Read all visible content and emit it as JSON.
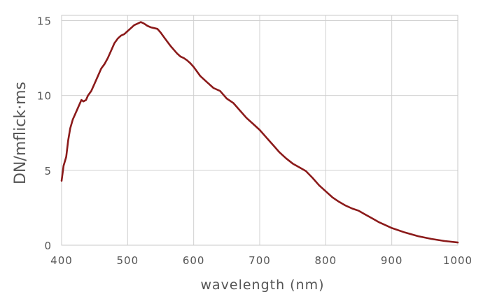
{
  "chart_data": {
    "type": "line",
    "title": "",
    "xlabel": "wavelength (nm)",
    "ylabel": "DN/mflick·ms",
    "xlim": [
      400,
      1000
    ],
    "ylim": [
      0,
      16
    ],
    "x_ticks": [
      400,
      500,
      600,
      700,
      800,
      900,
      1000
    ],
    "y_ticks": [
      0,
      5,
      10,
      15
    ],
    "grid": true,
    "legend": "none",
    "line_color": "#8b1a1a",
    "grid_color": "#d0d0d0",
    "series": [
      {
        "x": [
          400,
          403,
          407,
          410,
          413,
          417,
          420,
          425,
          430,
          433,
          437,
          440,
          445,
          450,
          455,
          460,
          465,
          470,
          475,
          480,
          485,
          490,
          495,
          500,
          505,
          510,
          515,
          520,
          525,
          530,
          535,
          540,
          545,
          550,
          555,
          560,
          565,
          570,
          575,
          580,
          585,
          590,
          595,
          600,
          610,
          620,
          630,
          640,
          650,
          660,
          670,
          680,
          690,
          700,
          710,
          720,
          730,
          740,
          750,
          760,
          770,
          780,
          790,
          800,
          810,
          820,
          830,
          840,
          850,
          860,
          870,
          880,
          890,
          900,
          920,
          940,
          960,
          980,
          1000
        ],
        "y": [
          4.3,
          5.3,
          5.9,
          7.0,
          7.8,
          8.4,
          8.7,
          9.2,
          9.7,
          9.6,
          9.7,
          10.0,
          10.3,
          10.8,
          11.3,
          11.8,
          12.1,
          12.5,
          13.0,
          13.5,
          13.8,
          14.0,
          14.1,
          14.3,
          14.5,
          14.7,
          14.8,
          14.9,
          14.8,
          14.65,
          14.55,
          14.5,
          14.45,
          14.2,
          13.9,
          13.6,
          13.3,
          13.05,
          12.8,
          12.6,
          12.5,
          12.35,
          12.15,
          11.9,
          11.3,
          10.9,
          10.5,
          10.3,
          9.8,
          9.5,
          9.0,
          8.5,
          8.1,
          7.7,
          7.2,
          6.7,
          6.2,
          5.8,
          5.45,
          5.2,
          4.95,
          4.5,
          4.0,
          3.6,
          3.2,
          2.9,
          2.65,
          2.45,
          2.3,
          2.05,
          1.8,
          1.55,
          1.35,
          1.15,
          0.85,
          0.6,
          0.42,
          0.28,
          0.18
        ]
      }
    ]
  }
}
